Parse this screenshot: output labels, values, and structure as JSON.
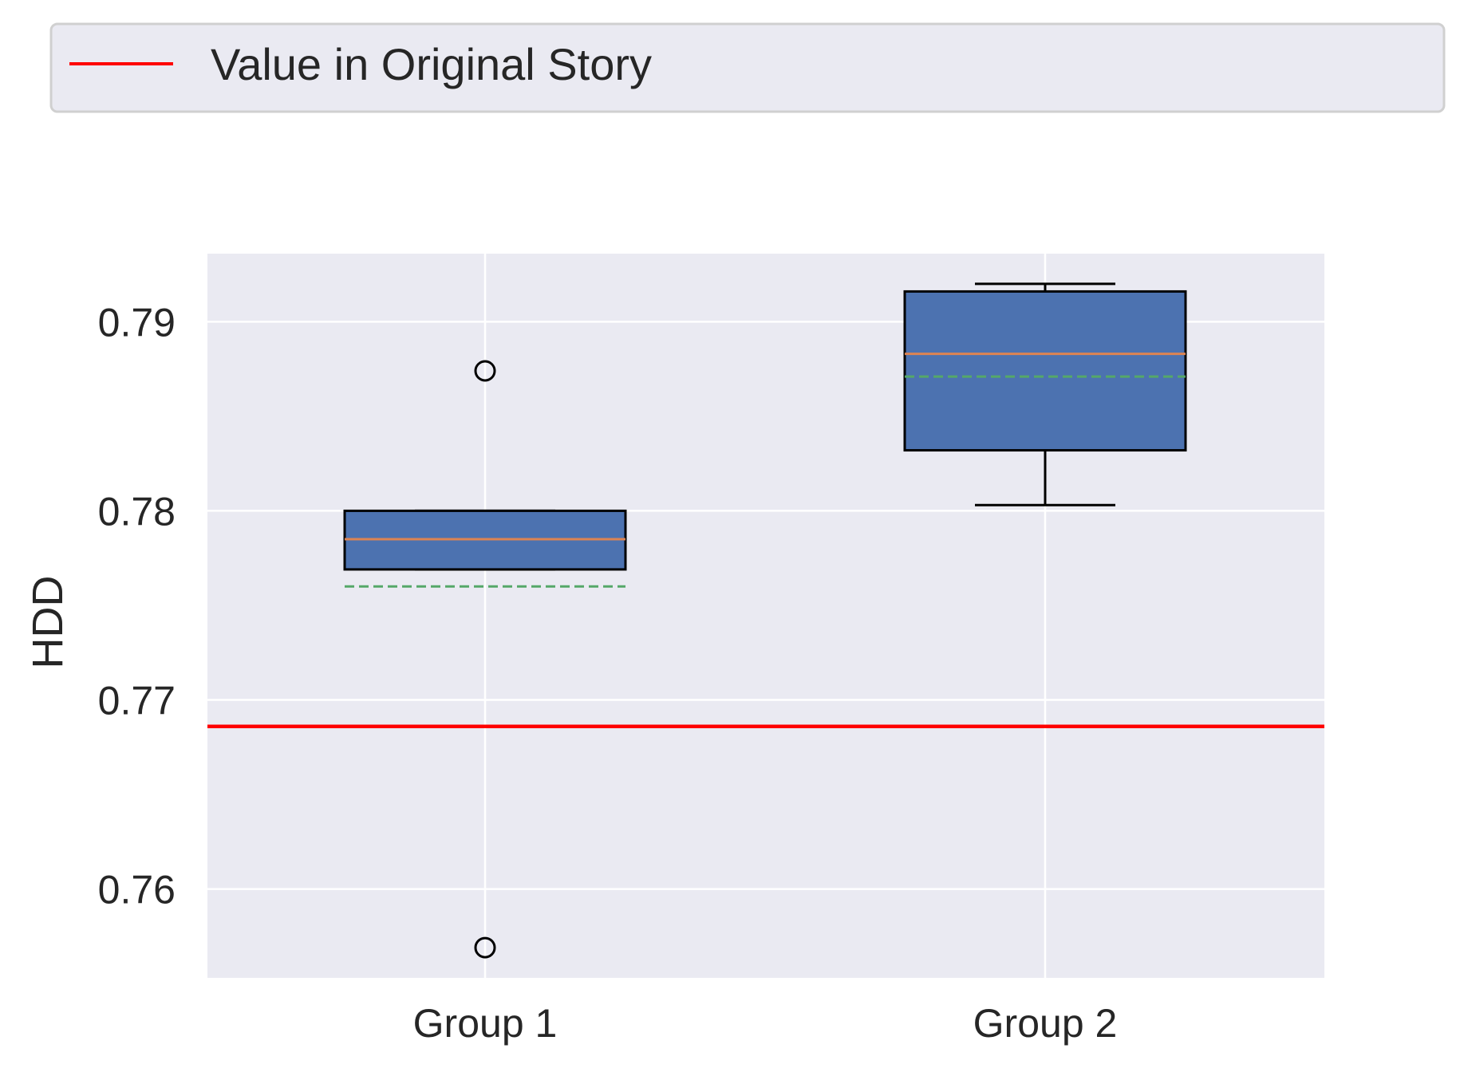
{
  "chart_data": {
    "type": "box",
    "title": "",
    "xlabel": "",
    "ylabel": "HDD",
    "categories": [
      "Group 1",
      "Group 2"
    ],
    "boxes": [
      {
        "category": "Group 1",
        "whisker_low": 0.7769,
        "q1": 0.7769,
        "median": 0.7785,
        "mean": 0.776,
        "q3": 0.78,
        "whisker_high": 0.78,
        "outliers": [
          0.7874,
          0.7569
        ]
      },
      {
        "category": "Group 2",
        "whisker_low": 0.7803,
        "q1": 0.7832,
        "median": 0.7883,
        "mean": 0.7871,
        "q3": 0.7916,
        "whisker_high": 0.792,
        "outliers": []
      }
    ],
    "reference_line": {
      "label": "Value in Original Story",
      "value": 0.7686,
      "color": "#ff0000"
    },
    "ylim": [
      0.7553,
      0.7936
    ],
    "yticks": [
      0.76,
      0.77,
      0.78,
      0.79
    ],
    "ytick_labels": [
      "0.76",
      "0.77",
      "0.78",
      "0.79"
    ],
    "grid": true,
    "legend": {
      "placement": "top",
      "entries": [
        "Value in Original Story"
      ]
    },
    "colors": {
      "box_fill": "#4c72b0",
      "median": "#dd8452",
      "mean": "#55a868",
      "reference": "#ff0000",
      "plot_background": "#eaeaf2",
      "grid": "#ffffff"
    }
  }
}
